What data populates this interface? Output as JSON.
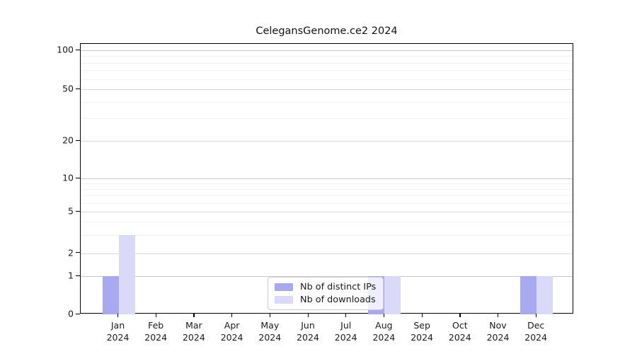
{
  "chart_data": {
    "type": "bar",
    "title": "CelegansGenome.ce2 2024",
    "categories": [
      "Jan 2024",
      "Feb 2024",
      "Mar 2024",
      "Apr 2024",
      "May 2024",
      "Jun 2024",
      "Jul 2024",
      "Aug 2024",
      "Sep 2024",
      "Oct 2024",
      "Nov 2024",
      "Dec 2024"
    ],
    "series": [
      {
        "name": "Nb of distinct IPs",
        "color": "#a9a9f2",
        "values": [
          1,
          0,
          0,
          0,
          0,
          0,
          0,
          1,
          0,
          0,
          0,
          1
        ]
      },
      {
        "name": "Nb of downloads",
        "color": "#dadaf8",
        "values": [
          3,
          0,
          0,
          0,
          0,
          0,
          0,
          1,
          0,
          0,
          0,
          1
        ]
      }
    ],
    "xlabel": "",
    "ylabel": "",
    "y_axis": {
      "scale": "log-above-1-linear-below-1",
      "ticks": [
        0,
        1,
        2,
        5,
        10,
        20,
        50,
        100
      ],
      "minor_gridline_values": [
        3,
        4,
        6,
        7,
        8,
        9,
        30,
        40,
        60,
        70,
        80,
        90
      ],
      "range": [
        0,
        115
      ]
    },
    "grid": true,
    "legend_position": "inside-bottom-center"
  },
  "colors": {
    "background": "#ffffff",
    "axis": "#000000",
    "gridline_major": "#d9d9d9",
    "gridline_minor": "#f2f2f2",
    "text": "#1a1a1a",
    "legend_border": "#cccccc"
  }
}
